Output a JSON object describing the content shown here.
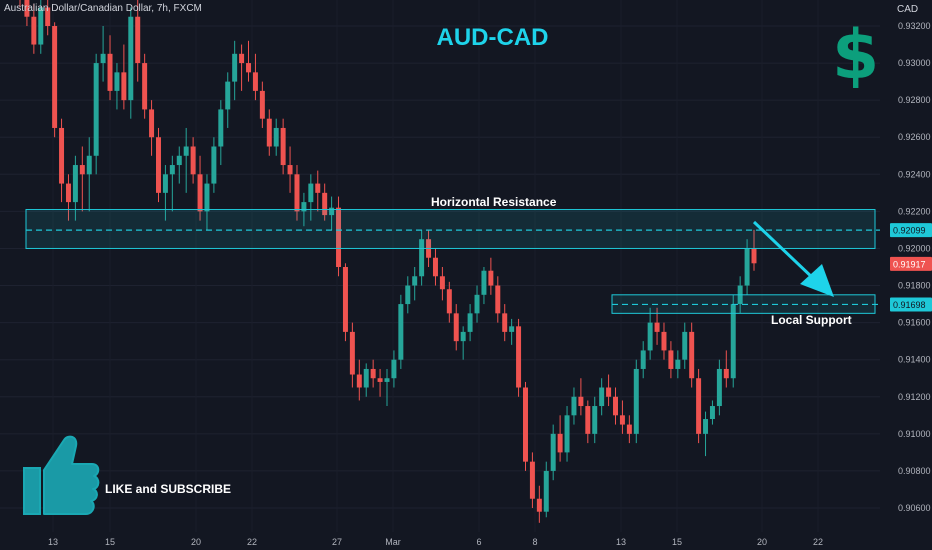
{
  "symbol": "Australian Dollar/Canadian Dollar, 7h, FXCM",
  "currency": "CAD",
  "title": "AUD-CAD",
  "dollar_sign": "$",
  "annotations": {
    "resistance_label": "Horizontal Resistance",
    "support_label": "Local Support",
    "cta_label": "LIKE and SUBSCRIBE"
  },
  "colors": {
    "up": "#26a69a",
    "down": "#ef5350",
    "zone": "#1ec8d8",
    "arrow": "#1ed3ea",
    "title": "#1ed3ea",
    "dollar": "#0c9f7c",
    "price_tag": "#ef5350",
    "level_tag": "#1ec8d8"
  },
  "icons": {
    "like": "thumbs-up-icon"
  },
  "chart_data": {
    "type": "candlestick",
    "yunit": "CAD",
    "ylim": [
      0.9051,
      0.9344
    ],
    "y_ticks": [
      "0.93200",
      "0.93000",
      "0.92800",
      "0.92600",
      "0.92400",
      "0.92200",
      "0.92000",
      "0.91800",
      "0.91600",
      "0.91400",
      "0.91200",
      "0.91000",
      "0.90800",
      "0.90600"
    ],
    "x_ticks": [
      "13",
      "15",
      "20",
      "22",
      "27",
      "Mar",
      "6",
      "8",
      "13",
      "15",
      "20",
      "22"
    ],
    "price_labels": {
      "resistance_level": "0.92099",
      "last_price": "0.91917",
      "support_level": "0.91698"
    },
    "resistance_zone": [
      0.92,
      0.9221
    ],
    "support_zone": [
      0.9165,
      0.9175
    ],
    "candles": [
      [
        0.934,
        0.9345,
        0.933,
        0.9335
      ],
      [
        0.9335,
        0.934,
        0.932,
        0.9325
      ],
      [
        0.9325,
        0.9332,
        0.9305,
        0.931
      ],
      [
        0.931,
        0.9335,
        0.9305,
        0.933
      ],
      [
        0.933,
        0.9338,
        0.9315,
        0.932
      ],
      [
        0.932,
        0.9322,
        0.926,
        0.9265
      ],
      [
        0.9265,
        0.927,
        0.9225,
        0.9235
      ],
      [
        0.9235,
        0.924,
        0.9215,
        0.9225
      ],
      [
        0.9225,
        0.925,
        0.9215,
        0.9245
      ],
      [
        0.9245,
        0.9255,
        0.922,
        0.924
      ],
      [
        0.924,
        0.926,
        0.922,
        0.925
      ],
      [
        0.925,
        0.9305,
        0.924,
        0.93
      ],
      [
        0.93,
        0.932,
        0.929,
        0.9305
      ],
      [
        0.9305,
        0.9315,
        0.928,
        0.9285
      ],
      [
        0.9285,
        0.93,
        0.9275,
        0.9295
      ],
      [
        0.9295,
        0.931,
        0.9275,
        0.928
      ],
      [
        0.928,
        0.933,
        0.927,
        0.9325
      ],
      [
        0.9325,
        0.9335,
        0.929,
        0.93
      ],
      [
        0.93,
        0.9305,
        0.927,
        0.9275
      ],
      [
        0.9275,
        0.928,
        0.925,
        0.926
      ],
      [
        0.926,
        0.9265,
        0.9225,
        0.923
      ],
      [
        0.923,
        0.9245,
        0.9215,
        0.924
      ],
      [
        0.924,
        0.925,
        0.922,
        0.9245
      ],
      [
        0.9245,
        0.9255,
        0.9235,
        0.925
      ],
      [
        0.925,
        0.9265,
        0.923,
        0.9255
      ],
      [
        0.9255,
        0.926,
        0.9235,
        0.924
      ],
      [
        0.924,
        0.925,
        0.9215,
        0.922
      ],
      [
        0.922,
        0.924,
        0.921,
        0.9235
      ],
      [
        0.9235,
        0.926,
        0.923,
        0.9255
      ],
      [
        0.9255,
        0.928,
        0.9245,
        0.9275
      ],
      [
        0.9275,
        0.9295,
        0.9265,
        0.929
      ],
      [
        0.929,
        0.9312,
        0.928,
        0.9305
      ],
      [
        0.9305,
        0.931,
        0.9285,
        0.93
      ],
      [
        0.93,
        0.9312,
        0.929,
        0.9295
      ],
      [
        0.9295,
        0.9305,
        0.928,
        0.9285
      ],
      [
        0.9285,
        0.929,
        0.9265,
        0.927
      ],
      [
        0.927,
        0.9275,
        0.925,
        0.9255
      ],
      [
        0.9255,
        0.927,
        0.925,
        0.9265
      ],
      [
        0.9265,
        0.927,
        0.924,
        0.9245
      ],
      [
        0.9245,
        0.9255,
        0.923,
        0.924
      ],
      [
        0.924,
        0.9245,
        0.9215,
        0.922
      ],
      [
        0.922,
        0.923,
        0.9212,
        0.9225
      ],
      [
        0.9225,
        0.924,
        0.9215,
        0.9235
      ],
      [
        0.9235,
        0.9242,
        0.922,
        0.923
      ],
      [
        0.923,
        0.9235,
        0.9215,
        0.9218
      ],
      [
        0.9218,
        0.9228,
        0.921,
        0.9222
      ],
      [
        0.9222,
        0.9228,
        0.9185,
        0.919
      ],
      [
        0.919,
        0.9192,
        0.915,
        0.9155
      ],
      [
        0.9155,
        0.916,
        0.9125,
        0.9132
      ],
      [
        0.9132,
        0.914,
        0.9118,
        0.9125
      ],
      [
        0.9125,
        0.9138,
        0.912,
        0.9135
      ],
      [
        0.9135,
        0.914,
        0.9125,
        0.913
      ],
      [
        0.913,
        0.9135,
        0.912,
        0.9128
      ],
      [
        0.9128,
        0.9135,
        0.9115,
        0.913
      ],
      [
        0.913,
        0.9145,
        0.9125,
        0.914
      ],
      [
        0.914,
        0.9175,
        0.9135,
        0.917
      ],
      [
        0.917,
        0.9185,
        0.9165,
        0.918
      ],
      [
        0.918,
        0.919,
        0.9172,
        0.9185
      ],
      [
        0.9185,
        0.921,
        0.918,
        0.9205
      ],
      [
        0.9205,
        0.921,
        0.919,
        0.9195
      ],
      [
        0.9195,
        0.92,
        0.918,
        0.9185
      ],
      [
        0.9185,
        0.919,
        0.9172,
        0.9178
      ],
      [
        0.9178,
        0.9182,
        0.916,
        0.9165
      ],
      [
        0.9165,
        0.917,
        0.9145,
        0.915
      ],
      [
        0.915,
        0.9158,
        0.914,
        0.9155
      ],
      [
        0.9155,
        0.917,
        0.915,
        0.9165
      ],
      [
        0.9165,
        0.918,
        0.916,
        0.9175
      ],
      [
        0.9175,
        0.919,
        0.917,
        0.9188
      ],
      [
        0.9188,
        0.9195,
        0.9175,
        0.918
      ],
      [
        0.918,
        0.9185,
        0.916,
        0.9165
      ],
      [
        0.9165,
        0.917,
        0.915,
        0.9155
      ],
      [
        0.9155,
        0.9162,
        0.9148,
        0.9158
      ],
      [
        0.9158,
        0.9162,
        0.912,
        0.9125
      ],
      [
        0.9125,
        0.9128,
        0.908,
        0.9085
      ],
      [
        0.9085,
        0.909,
        0.906,
        0.9065
      ],
      [
        0.9065,
        0.9072,
        0.9052,
        0.9058
      ],
      [
        0.9058,
        0.9085,
        0.9055,
        0.908
      ],
      [
        0.908,
        0.9105,
        0.9075,
        0.91
      ],
      [
        0.91,
        0.911,
        0.9085,
        0.909
      ],
      [
        0.909,
        0.9115,
        0.9085,
        0.911
      ],
      [
        0.911,
        0.9125,
        0.9105,
        0.912
      ],
      [
        0.912,
        0.913,
        0.911,
        0.9115
      ],
      [
        0.9115,
        0.9118,
        0.9095,
        0.91
      ],
      [
        0.91,
        0.912,
        0.9095,
        0.9115
      ],
      [
        0.9115,
        0.913,
        0.911,
        0.9125
      ],
      [
        0.9125,
        0.9132,
        0.9115,
        0.912
      ],
      [
        0.912,
        0.9125,
        0.9105,
        0.911
      ],
      [
        0.911,
        0.9118,
        0.91,
        0.9105
      ],
      [
        0.9105,
        0.911,
        0.9095,
        0.91
      ],
      [
        0.91,
        0.914,
        0.9095,
        0.9135
      ],
      [
        0.9135,
        0.915,
        0.913,
        0.9145
      ],
      [
        0.9145,
        0.9168,
        0.914,
        0.916
      ],
      [
        0.916,
        0.9168,
        0.9148,
        0.9155
      ],
      [
        0.9155,
        0.916,
        0.914,
        0.9145
      ],
      [
        0.9145,
        0.915,
        0.913,
        0.9135
      ],
      [
        0.9135,
        0.9145,
        0.913,
        0.914
      ],
      [
        0.914,
        0.916,
        0.9135,
        0.9155
      ],
      [
        0.9155,
        0.916,
        0.9125,
        0.913
      ],
      [
        0.913,
        0.9135,
        0.9095,
        0.91
      ],
      [
        0.91,
        0.9112,
        0.9088,
        0.9108
      ],
      [
        0.9108,
        0.9118,
        0.9105,
        0.9115
      ],
      [
        0.9115,
        0.914,
        0.911,
        0.9135
      ],
      [
        0.9135,
        0.9145,
        0.9125,
        0.913
      ],
      [
        0.913,
        0.9175,
        0.9125,
        0.917
      ],
      [
        0.917,
        0.9185,
        0.9165,
        0.918
      ],
      [
        0.918,
        0.9205,
        0.9175,
        0.92
      ],
      [
        0.92,
        0.921,
        0.9188,
        0.9192
      ]
    ]
  }
}
